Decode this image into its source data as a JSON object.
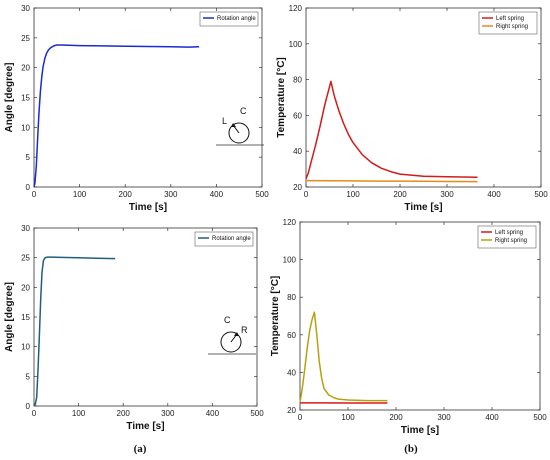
{
  "panel_labels": [
    "(a)",
    "(b)"
  ],
  "chart_data": [
    {
      "type": "line",
      "xlabel": "Time [s]",
      "ylabel": "Angle [degree]",
      "xlim": [
        0,
        500
      ],
      "ylim": [
        0,
        30
      ],
      "xticks": [
        0,
        100,
        200,
        300,
        400,
        500
      ],
      "yticks": [
        0,
        5,
        10,
        15,
        20,
        25,
        30
      ],
      "grid": false,
      "legend": "top-right",
      "inset_labels": [
        "L",
        "C"
      ],
      "series": [
        {
          "name": "Rotation angle",
          "color": "#1a2bd1",
          "x": [
            0,
            2,
            5,
            8,
            11,
            14,
            17,
            20,
            24,
            28,
            32,
            36,
            40,
            45,
            50,
            55,
            60,
            100,
            150,
            200,
            250,
            300,
            340,
            362
          ],
          "y": [
            0,
            0.6,
            3.5,
            8,
            12.5,
            16,
            18.5,
            20.2,
            21.6,
            22.5,
            23.0,
            23.3,
            23.5,
            23.7,
            23.8,
            23.8,
            23.8,
            23.7,
            23.65,
            23.6,
            23.55,
            23.5,
            23.45,
            23.5
          ]
        }
      ]
    },
    {
      "type": "line",
      "xlabel": "Time [s]",
      "ylabel": "Temperature [°C]",
      "xlim": [
        0,
        500
      ],
      "ylim": [
        20,
        120
      ],
      "xticks": [
        0,
        100,
        200,
        300,
        400,
        500
      ],
      "yticks": [
        20,
        40,
        60,
        80,
        100,
        120
      ],
      "grid": false,
      "legend": "top-right",
      "series": [
        {
          "name": "Left spring",
          "color": "#d41a1a",
          "x": [
            0,
            5,
            10,
            20,
            30,
            40,
            50,
            53,
            60,
            70,
            80,
            90,
            100,
            120,
            140,
            160,
            180,
            200,
            250,
            300,
            365
          ],
          "y": [
            24.5,
            28,
            33,
            43,
            54,
            66,
            76,
            79,
            71,
            62.5,
            55.5,
            49.5,
            44.8,
            38,
            33.5,
            30.5,
            28.6,
            27.2,
            26,
            25.7,
            25.5
          ]
        },
        {
          "name": "Right spring",
          "color": "#e88a1a",
          "x": [
            0,
            50,
            100,
            150,
            200,
            250,
            300,
            365
          ],
          "y": [
            23.6,
            23.5,
            23.4,
            23.3,
            23.3,
            23.2,
            23.1,
            23.0
          ]
        }
      ]
    },
    {
      "type": "line",
      "xlabel": "Time [s]",
      "ylabel": "Angle [degree]",
      "xlim": [
        0,
        500
      ],
      "ylim": [
        0,
        30
      ],
      "xticks": [
        0,
        100,
        200,
        300,
        400,
        500
      ],
      "yticks": [
        0,
        5,
        10,
        15,
        20,
        25,
        30
      ],
      "grid": false,
      "legend": "top-right",
      "inset_labels": [
        "C",
        "R"
      ],
      "series": [
        {
          "name": "Rotation angle",
          "color": "#1f5f7a",
          "x": [
            0,
            3,
            6,
            9,
            12,
            15,
            18,
            21,
            25,
            30,
            40,
            60,
            100,
            140,
            182
          ],
          "y": [
            0,
            0.3,
            1.5,
            6,
            12,
            18,
            22.5,
            24.5,
            25.0,
            25.1,
            25.1,
            25.05,
            25.0,
            24.9,
            24.85
          ]
        }
      ]
    },
    {
      "type": "line",
      "xlabel": "Time [s]",
      "ylabel": "Temperature [°C]",
      "xlim": [
        0,
        500
      ],
      "ylim": [
        20,
        120
      ],
      "xticks": [
        0,
        100,
        200,
        300,
        400,
        500
      ],
      "yticks": [
        20,
        40,
        60,
        80,
        100,
        120
      ],
      "grid": false,
      "legend": "top-right",
      "series": [
        {
          "name": "Left spring",
          "color": "#d41a1a",
          "x": [
            0,
            50,
            100,
            150,
            182
          ],
          "y": [
            23.8,
            23.8,
            23.7,
            23.7,
            23.7
          ]
        },
        {
          "name": "Right spring",
          "color": "#b8a010",
          "x": [
            0,
            5,
            10,
            15,
            20,
            25,
            30,
            35,
            40,
            45,
            50,
            60,
            70,
            80,
            100,
            140,
            182
          ],
          "y": [
            24,
            32,
            42,
            53,
            62,
            68,
            72,
            60,
            46,
            37,
            31.5,
            28,
            26.6,
            25.8,
            25.3,
            25.0,
            25.0
          ]
        }
      ]
    }
  ]
}
